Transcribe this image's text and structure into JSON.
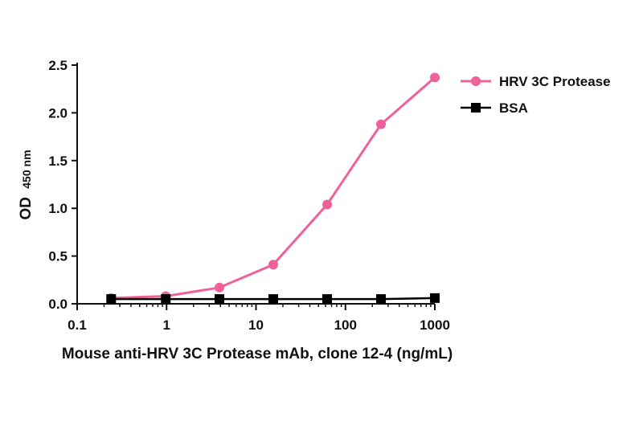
{
  "chart_data": {
    "type": "line",
    "title": "",
    "xlabel": "Mouse anti-HRV 3C Protease mAb, clone 12-4 (ng/mL)",
    "ylabel_main": "OD",
    "ylabel_sub": "450 nm",
    "xscale": "log",
    "xlim": [
      0.1,
      1000
    ],
    "ylim": [
      0,
      2.5
    ],
    "xticks": [
      0.1,
      1,
      10,
      100,
      1000
    ],
    "xtick_labels": [
      "0.1",
      "1",
      "10",
      "100",
      "1000"
    ],
    "yticks": [
      0,
      0.5,
      1.0,
      1.5,
      2.0,
      2.5
    ],
    "ytick_labels": [
      "0.0",
      "0.5",
      "1.0",
      "1.5",
      "2.0",
      "2.5"
    ],
    "grid": false,
    "legend_position": "top-right",
    "series": [
      {
        "name": "HRV 3C Protease",
        "color": "#f0609a",
        "marker": "circle",
        "x": [
          0.24,
          0.98,
          3.9,
          15.6,
          62.5,
          250,
          1000
        ],
        "y": [
          0.06,
          0.08,
          0.17,
          0.41,
          1.04,
          1.88,
          2.37
        ]
      },
      {
        "name": "BSA",
        "color": "#000000",
        "marker": "square",
        "x": [
          0.24,
          0.98,
          3.9,
          15.6,
          62.5,
          250,
          1000
        ],
        "y": [
          0.05,
          0.05,
          0.05,
          0.05,
          0.05,
          0.05,
          0.06
        ]
      }
    ]
  }
}
